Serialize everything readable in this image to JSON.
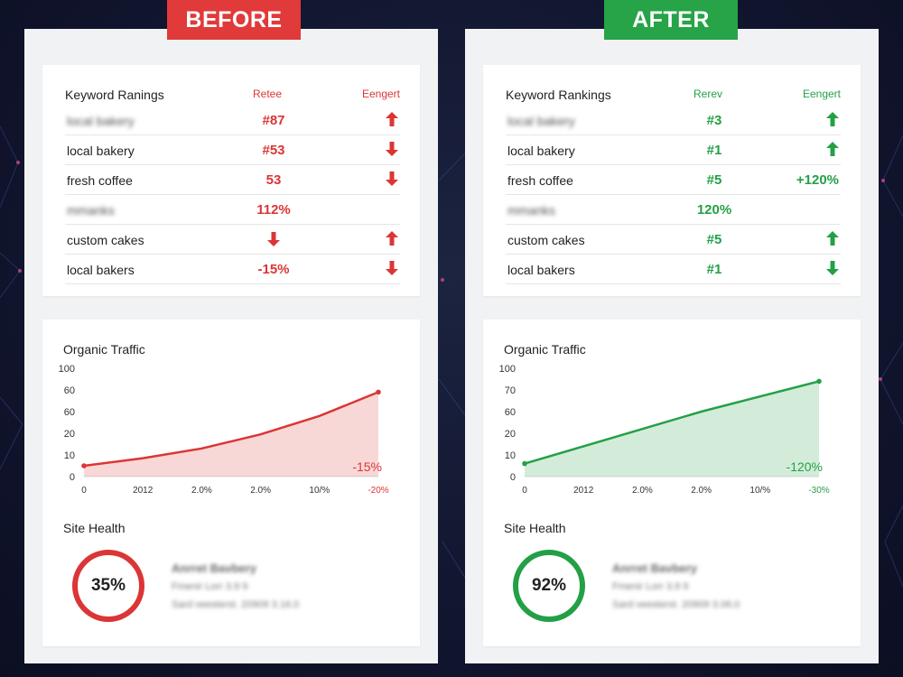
{
  "before": {
    "banner": "BEFORE",
    "accent": "#dc3535",
    "keyword_table": {
      "title": "Keyword Ranings",
      "col2": "Retee",
      "col3": "Eengert",
      "rows": [
        {
          "keyword": "local bakery",
          "blurred": true,
          "rank": "#87",
          "rank_arrow": "",
          "change": "",
          "change_arrow": "up-arrow-icon"
        },
        {
          "keyword": "local bakery",
          "blurred": false,
          "rank": "#53",
          "rank_arrow": "",
          "change": "",
          "change_arrow": "down-arrow-icon"
        },
        {
          "keyword": "fresh coffee",
          "blurred": false,
          "rank": "53",
          "rank_arrow": "",
          "change": "",
          "change_arrow": "down-arrow-icon"
        },
        {
          "keyword": "mmanks",
          "blurred": true,
          "rank": "112%",
          "rank_arrow": "",
          "change": "",
          "change_arrow": ""
        },
        {
          "keyword": "custom cakes",
          "blurred": false,
          "rank": "",
          "rank_arrow": "down-arrow-icon",
          "change": "",
          "change_arrow": "up-arrow-icon"
        },
        {
          "keyword": "local bakers",
          "blurred": false,
          "rank": "-15%",
          "rank_arrow": "",
          "change": "",
          "change_arrow": "down-arrow-icon"
        }
      ]
    },
    "traffic": {
      "title": "Organic Traffic",
      "chart_data": {
        "type": "area",
        "title": "Organic Traffic",
        "y_ticks": [
          "100",
          "60",
          "60",
          "20",
          "10",
          "0"
        ],
        "x_ticks": [
          "0",
          "2012",
          "2.0%",
          "2.0%",
          "10/%",
          "-20%"
        ],
        "annotation": "-15%",
        "ylim": [
          0,
          100
        ],
        "points": [
          [
            0,
            10
          ],
          [
            0.2,
            17
          ],
          [
            0.4,
            26
          ],
          [
            0.6,
            39
          ],
          [
            0.8,
            56
          ],
          [
            1.0,
            78
          ]
        ]
      }
    },
    "health": {
      "title": "Site Health",
      "value": "35%",
      "fraction": 1.0,
      "blur_lines": [
        "Anrret Bavbery",
        "Fmenir Lorr 3.9 9",
        "Sard veesterst. 20909 3.16.0"
      ]
    }
  },
  "after": {
    "banner": "AFTER",
    "accent": "#23a046",
    "keyword_table": {
      "title": "Keyword Rankings",
      "col2": "Rerev",
      "col3": "Eengert",
      "rows": [
        {
          "keyword": "local bakery",
          "blurred": true,
          "rank": "#3",
          "rank_arrow": "",
          "change": "",
          "change_arrow": "up-arrow-icon"
        },
        {
          "keyword": "local bakery",
          "blurred": false,
          "rank": "#1",
          "rank_arrow": "",
          "change": "",
          "change_arrow": "up-arrow-icon"
        },
        {
          "keyword": "fresh coffee",
          "blurred": false,
          "rank": "#5",
          "rank_arrow": "",
          "change": "+120%",
          "change_arrow": ""
        },
        {
          "keyword": "mmanks",
          "blurred": true,
          "rank": "120%",
          "rank_arrow": "",
          "change": "",
          "change_arrow": ""
        },
        {
          "keyword": "custom cakes",
          "blurred": false,
          "rank": "#5",
          "rank_arrow": "",
          "change": "",
          "change_arrow": "up-arrow-icon"
        },
        {
          "keyword": "local bakers",
          "blurred": false,
          "rank": "#1",
          "rank_arrow": "",
          "change": "",
          "change_arrow": "down-arrow-icon"
        }
      ]
    },
    "traffic": {
      "title": "Organic Traffic",
      "chart_data": {
        "type": "area",
        "title": "Organic Traffic",
        "y_ticks": [
          "100",
          "70",
          "60",
          "20",
          "10",
          "0"
        ],
        "x_ticks": [
          "0",
          "2012",
          "2.0%",
          "2.0%",
          "10/%",
          "-30%"
        ],
        "annotation": "-120%",
        "ylim": [
          0,
          100
        ],
        "points": [
          [
            0,
            12
          ],
          [
            0.2,
            28
          ],
          [
            0.4,
            44
          ],
          [
            0.6,
            60
          ],
          [
            0.8,
            74
          ],
          [
            1.0,
            88
          ]
        ]
      }
    },
    "health": {
      "title": "Site Health",
      "value": "92%",
      "fraction": 1.0,
      "blur_lines": [
        "Anrret Bavbery",
        "Fmenir Lorr 3.9 9",
        "Sard veesterst. 20909 3.06.0"
      ]
    }
  }
}
